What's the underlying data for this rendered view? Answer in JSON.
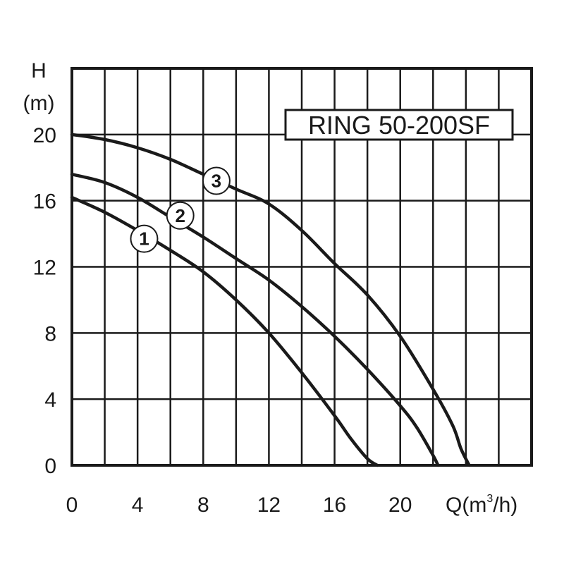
{
  "chart_data": {
    "type": "line",
    "title": "RING 50-200SF",
    "xlabel": "Q(m³/h)",
    "xlabel_main": "Q(m",
    "xlabel_sup": "3",
    "xlabel_tail": "/h)",
    "ylabel_top": "H",
    "ylabel_bottom": "(m)",
    "xlim": [
      0,
      28
    ],
    "ylim": [
      0,
      24
    ],
    "x_ticks": [
      0,
      4,
      8,
      12,
      16,
      20
    ],
    "y_ticks": [
      0,
      4,
      8,
      12,
      16,
      20
    ],
    "grid": true,
    "x_grid_step": 2,
    "y_grid_step": 4,
    "series": [
      {
        "name": "1",
        "x": [
          0,
          2,
          4,
          6,
          8,
          10,
          12,
          14,
          16,
          17,
          18,
          18.6
        ],
        "y": [
          16.2,
          15.3,
          14.2,
          13,
          11.7,
          10,
          8,
          5.6,
          3,
          1.6,
          0.4,
          0
        ]
      },
      {
        "name": "2",
        "x": [
          0,
          2,
          4,
          6,
          8,
          10,
          12,
          14,
          16,
          18,
          20,
          21,
          22,
          22.3
        ],
        "y": [
          17.6,
          17.1,
          16.2,
          15,
          13.8,
          12.5,
          11.2,
          9.6,
          7.8,
          5.8,
          3.6,
          2.3,
          0.6,
          0
        ]
      },
      {
        "name": "3",
        "x": [
          0,
          2,
          4,
          6,
          8,
          10,
          12,
          14,
          16,
          18,
          20,
          22,
          23.2,
          23.7,
          24.2
        ],
        "y": [
          20,
          19.7,
          19.2,
          18.5,
          17.6,
          16.7,
          15.8,
          14.2,
          12.2,
          10.3,
          7.8,
          4.6,
          2.4,
          1.0,
          0
        ]
      }
    ],
    "series_label_points": [
      {
        "series": "1",
        "x": 4.4,
        "y": 13.7
      },
      {
        "series": "2",
        "x": 6.6,
        "y": 15.1
      },
      {
        "series": "3",
        "x": 8.8,
        "y": 17.2
      }
    ]
  }
}
